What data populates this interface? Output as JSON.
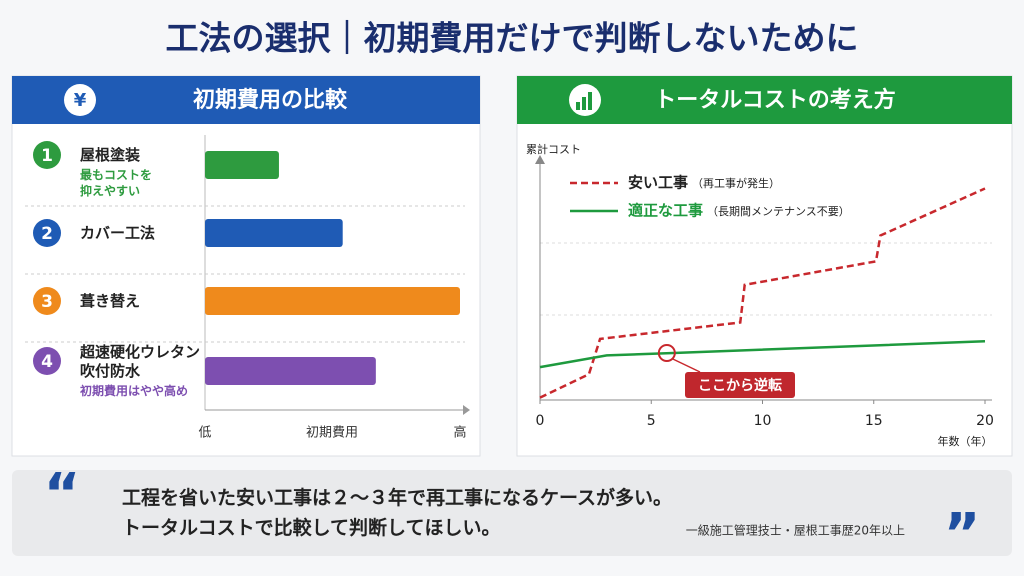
{
  "title": "工法の選択｜初期費用だけで判断しないために",
  "chart_data": [
    {
      "type": "bar",
      "orientation": "horizontal",
      "icon": "¥",
      "title": "初期費用の比較",
      "ranks": [
        1,
        2,
        3,
        4
      ],
      "categories": [
        "屋根塗装",
        "カバー工法",
        "葺き替え",
        "超速硬化ウレタン\n吹付防水"
      ],
      "notes": [
        "最もコストを\n抑えやすい",
        null,
        null,
        "初期費用はやや高め"
      ],
      "values": [
        29,
        54,
        100,
        67
      ],
      "colors": [
        "#2e9b3f",
        "#1f5bb5",
        "#ef8a1c",
        "#7d4fb0"
      ],
      "xlabel": "初期費用",
      "xlim": [
        0,
        100
      ],
      "xticks": [
        {
          "value": 0,
          "label": "低"
        },
        {
          "value": 100,
          "label": "高"
        }
      ]
    },
    {
      "type": "line",
      "title": "トータルコストの考え方",
      "ylabel": "累計コスト",
      "xlabel": "年数（年）",
      "xlim": [
        0,
        20
      ],
      "xticks": [
        0,
        5,
        10,
        15,
        20
      ],
      "ylim": [
        0,
        100
      ],
      "series": [
        {
          "name": "安い工事",
          "note": "（再工事が発生）",
          "color": "#c8282d",
          "dashed": true,
          "x": [
            0,
            2.2,
            2.7,
            9,
            9.2,
            15.1,
            15.3,
            20
          ],
          "values": [
            1,
            11,
            26,
            33,
            49,
            59,
            70,
            90
          ]
        },
        {
          "name": "適正な工事",
          "note": "（長期間メンテナンス不要）",
          "color": "#1e9a3e",
          "dashed": false,
          "x": [
            0,
            3,
            6,
            20
          ],
          "values": [
            14,
            19,
            20,
            25
          ]
        }
      ],
      "annotation": {
        "text": "ここから逆転",
        "x": 5.7,
        "y": 20
      }
    }
  ],
  "quote": {
    "text": "工程を省いた安い工事は２～３年で再工事になるケースが多い。\nトータルコストで比較して判断してほしい。",
    "source": "一級施工管理技士・屋根工事歴20年以上"
  }
}
